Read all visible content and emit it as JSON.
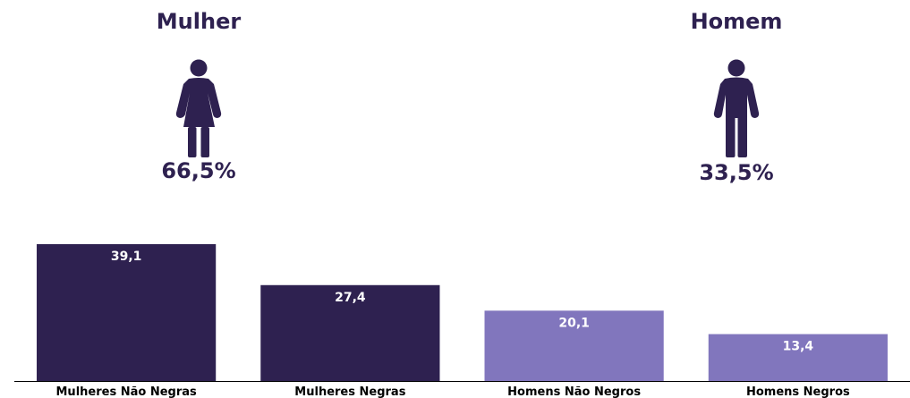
{
  "groups": {
    "women": {
      "title": "Mulher",
      "percent": "66,5%",
      "icon": "woman-icon"
    },
    "men": {
      "title": "Homem",
      "percent": "33,5%",
      "icon": "man-icon"
    }
  },
  "colors": {
    "dark": "#2e2150",
    "light": "#8176bd",
    "axis": "#000000"
  },
  "chart_data": {
    "type": "bar",
    "categories": [
      "Mulheres Não Negras",
      "Mulheres Negras",
      "Homens Não Negros",
      "Homens Negros"
    ],
    "values": [
      39.1,
      27.4,
      20.1,
      13.4
    ],
    "value_labels": [
      "39,1",
      "27,4",
      "20,1",
      "13,4"
    ],
    "bar_colors": [
      "#2e2150",
      "#2e2150",
      "#8176bd",
      "#8176bd"
    ],
    "title": "",
    "xlabel": "",
    "ylabel": "",
    "ylim": [
      0,
      39.1
    ],
    "grid": false
  }
}
